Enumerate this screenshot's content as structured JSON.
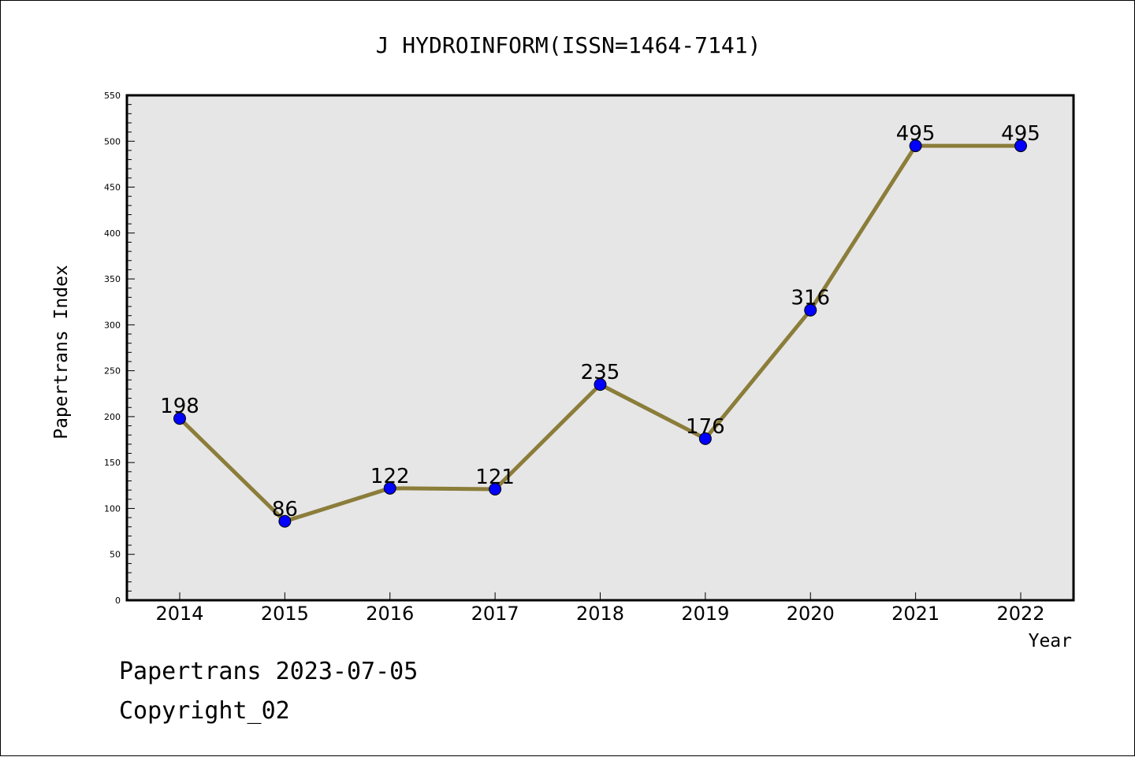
{
  "chart_data": {
    "type": "line",
    "title": "J HYDROINFORM(ISSN=1464-7141)",
    "xlabel": "Year",
    "ylabel": "Papertrans Index",
    "categories": [
      "2014",
      "2015",
      "2016",
      "2017",
      "2018",
      "2019",
      "2020",
      "2021",
      "2022"
    ],
    "series": [
      {
        "values": [
          198,
          86,
          122,
          121,
          235,
          176,
          316,
          495,
          495
        ]
      }
    ],
    "ylim": [
      0,
      550
    ],
    "yticks": [
      0,
      50,
      100,
      150,
      200,
      250,
      300,
      350,
      400,
      450,
      500,
      550
    ],
    "grid": false,
    "colors": {
      "line": "#8B7D3A",
      "marker": "#0000FF",
      "plot_background": "#E6E6E6"
    }
  },
  "footer": {
    "line1": "Papertrans 2023-07-05",
    "line2": "Copyright_02"
  }
}
